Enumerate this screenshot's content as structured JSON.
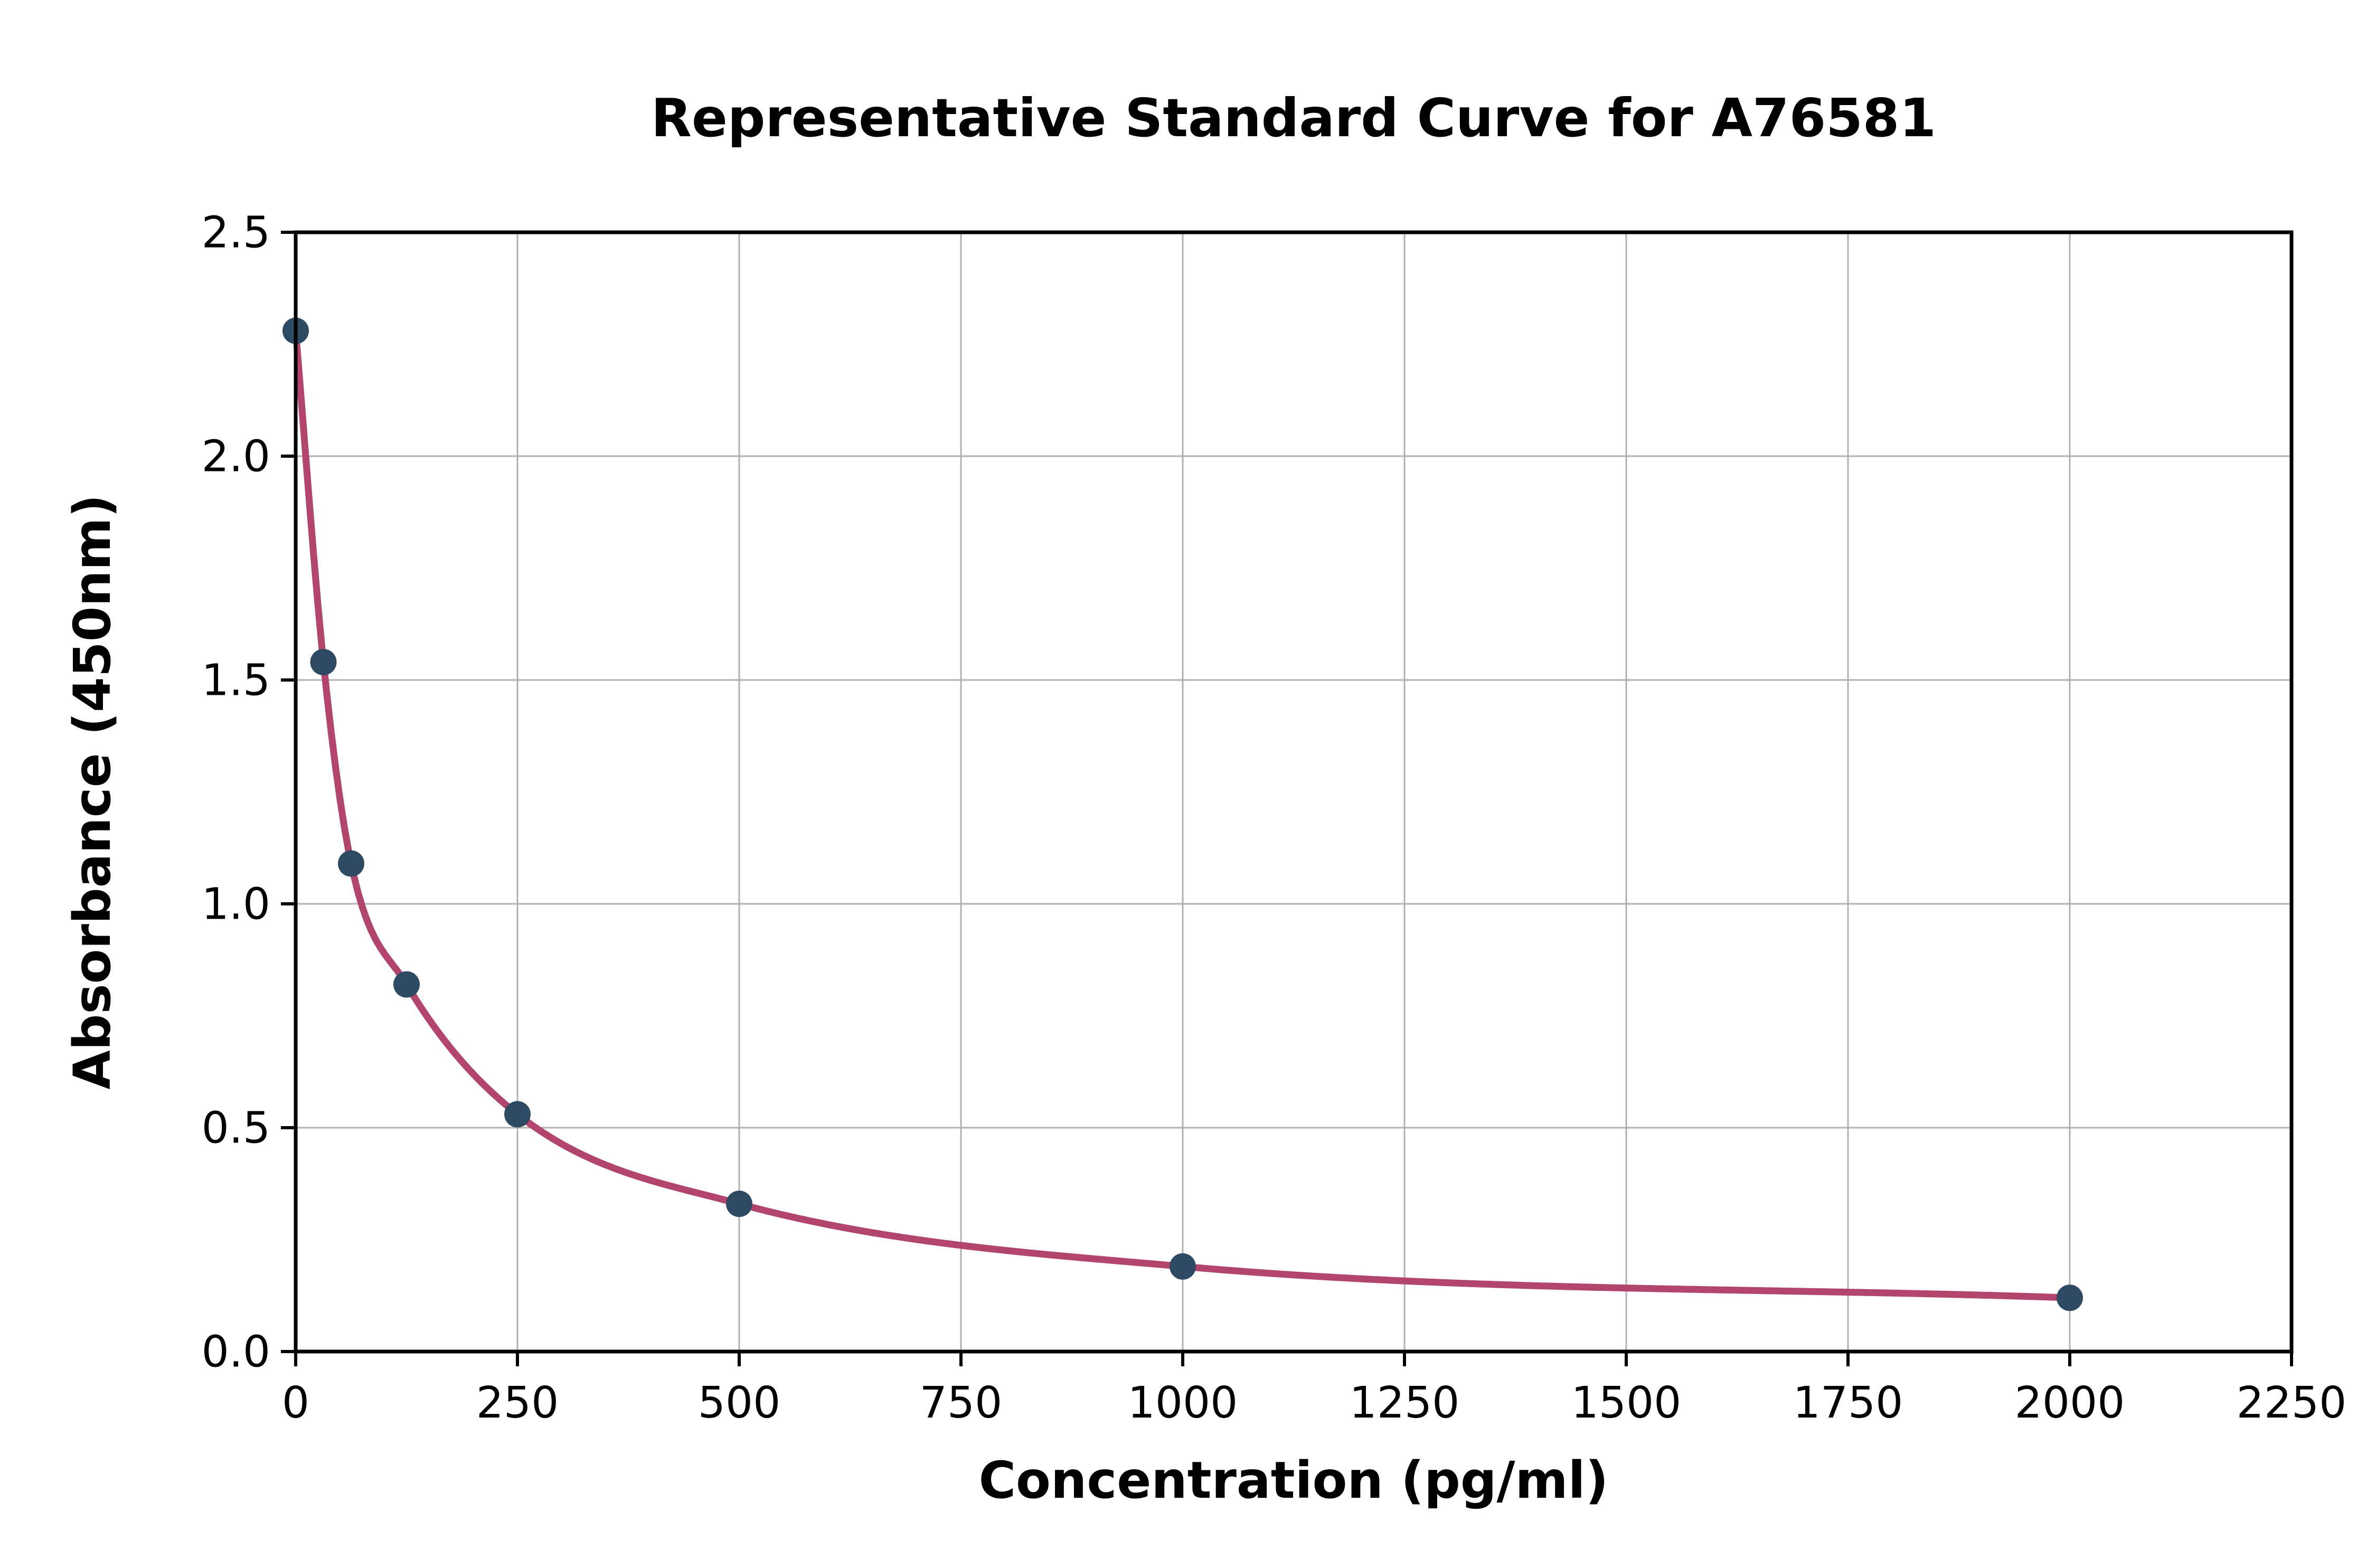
{
  "chart_data": {
    "type": "scatter",
    "title": "Representative Standard Curve for A76581",
    "xlabel": "Concentration (pg/ml)",
    "ylabel": "Absorbance (450nm)",
    "xlim": [
      0,
      2250
    ],
    "ylim": [
      0,
      2.5
    ],
    "x_ticks": [
      0,
      250,
      500,
      750,
      1000,
      1250,
      1500,
      1750,
      2000,
      2250
    ],
    "x_tick_labels": [
      "0",
      "250",
      "500",
      "750",
      "1000",
      "1250",
      "1500",
      "1750",
      "2000",
      "2250"
    ],
    "y_ticks": [
      0.0,
      0.5,
      1.0,
      1.5,
      2.0,
      2.5
    ],
    "y_tick_labels": [
      "0.0",
      "0.5",
      "1.0",
      "1.5",
      "2.0",
      "2.5"
    ],
    "grid": true,
    "legend": "none",
    "points": {
      "x": [
        0,
        31.25,
        62.5,
        125,
        250,
        500,
        1000,
        2000
      ],
      "y": [
        2.28,
        1.54,
        1.09,
        0.82,
        0.53,
        0.33,
        0.19,
        0.12
      ]
    },
    "curve": "smooth fit through data points",
    "point_color": "#2e4a63",
    "curve_color": "#b2456e",
    "grid_color": "#b0b0b0",
    "axis_color": "#000000",
    "background_color": "#ffffff"
  }
}
